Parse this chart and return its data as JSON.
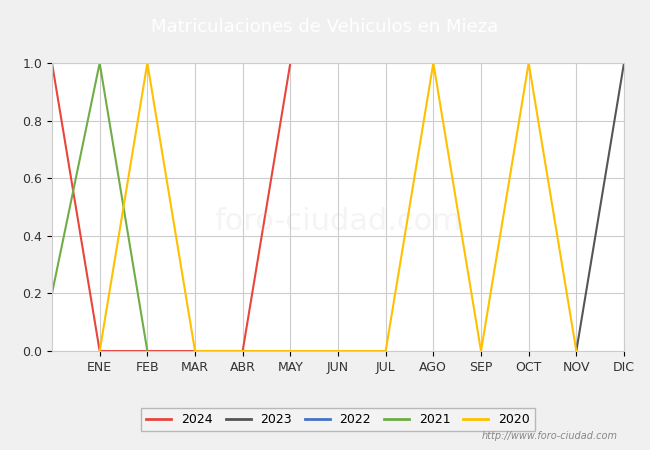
{
  "title": "Matriculaciones de Vehiculos en Mieza",
  "title_bgcolor": "#4472c4",
  "title_fgcolor": "#ffffff",
  "months": [
    "",
    "ENE",
    "FEB",
    "MAR",
    "ABR",
    "MAY",
    "JUN",
    "JUL",
    "AGO",
    "SEP",
    "OCT",
    "NOV",
    "DIC"
  ],
  "month_positions": [
    0,
    1,
    2,
    3,
    4,
    5,
    6,
    7,
    8,
    9,
    10,
    11,
    12
  ],
  "series": {
    "2024": {
      "color": "#e8463c",
      "points": [
        [
          0,
          1.0
        ],
        [
          1,
          0.0
        ],
        [
          4,
          0.0
        ],
        [
          5,
          1.0
        ]
      ]
    },
    "2023": {
      "color": "#555555",
      "points": [
        [
          11,
          0.0
        ],
        [
          12,
          1.0
        ]
      ]
    },
    "2022": {
      "color": "#4472c4",
      "points": []
    },
    "2021": {
      "color": "#70ad47",
      "points": [
        [
          0,
          0.2
        ],
        [
          1,
          1.0
        ],
        [
          2,
          0.0
        ]
      ]
    },
    "2020": {
      "color": "#ffc000",
      "points": [
        [
          1,
          0.0
        ],
        [
          2,
          1.0
        ],
        [
          3,
          0.0
        ],
        [
          7,
          0.0
        ],
        [
          8,
          1.0
        ],
        [
          9,
          0.0
        ],
        [
          10,
          1.0
        ],
        [
          11,
          0.0
        ]
      ]
    }
  },
  "ylim": [
    0.0,
    1.0
  ],
  "xlim": [
    0,
    12
  ],
  "watermark_text": "http://www.foro-ciudad.com",
  "background_color": "#f0f0f0",
  "plot_bg_color": "#ffffff",
  "grid_color": "#cccccc",
  "legend_order": [
    "2024",
    "2023",
    "2022",
    "2021",
    "2020"
  ]
}
